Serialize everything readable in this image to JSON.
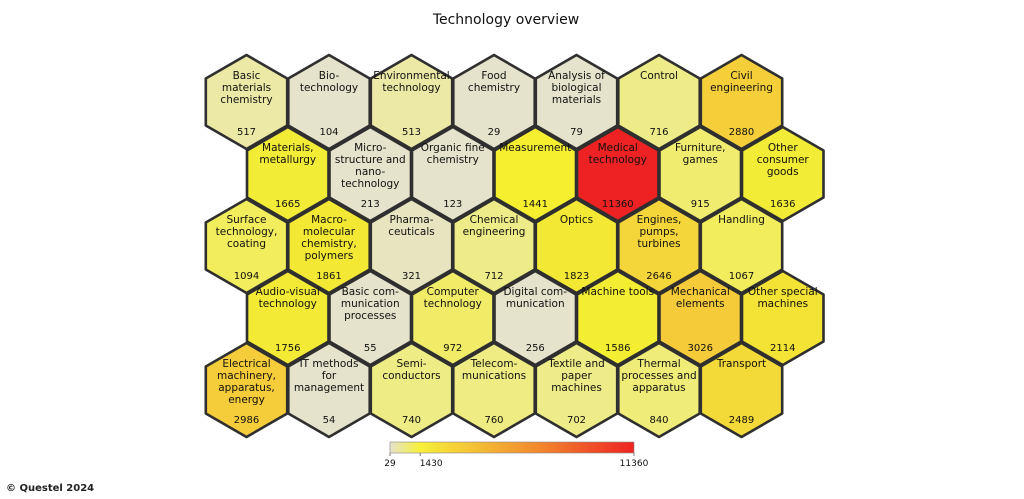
{
  "copyright": "© Questel 2024",
  "chart_data": {
    "type": "heatmap",
    "title": "Technology overview",
    "colorscale": {
      "min": 29,
      "mid": 1430,
      "max": 11360,
      "ticks": [
        "29",
        "1430",
        "11360"
      ],
      "colors": [
        "#e6e3cc",
        "#f7f03a",
        "#f28a2e",
        "#ee2222"
      ]
    },
    "cells": [
      {
        "row": 0,
        "col": 0,
        "label": [
          "Basic",
          "materials",
          "chemistry"
        ],
        "value": 517,
        "color": "#ece9a6"
      },
      {
        "row": 0,
        "col": 1,
        "label": [
          "Bio-",
          "technology"
        ],
        "value": 104,
        "color": "#e6e3cc"
      },
      {
        "row": 0,
        "col": 2,
        "label": [
          "Environmental",
          "technology"
        ],
        "value": 513,
        "color": "#ece9a6"
      },
      {
        "row": 0,
        "col": 3,
        "label": [
          "Food",
          "chemistry"
        ],
        "value": 29,
        "color": "#e6e3cc"
      },
      {
        "row": 0,
        "col": 4,
        "label": [
          "Analysis of",
          "biological",
          "materials"
        ],
        "value": 79,
        "color": "#e6e3cc"
      },
      {
        "row": 0,
        "col": 5,
        "label": [
          "Control"
        ],
        "value": 716,
        "color": "#eeec88"
      },
      {
        "row": 0,
        "col": 6,
        "label": [
          "Civil",
          "engineering"
        ],
        "value": 2880,
        "color": "#f5cf3a"
      },
      {
        "row": 1,
        "col": 0,
        "label": [
          "Materials,",
          "metallurgy"
        ],
        "value": 1665,
        "color": "#f3ec36"
      },
      {
        "row": 1,
        "col": 1,
        "label": [
          "Micro-",
          "structure and",
          "nano-",
          "technology"
        ],
        "value": 213,
        "color": "#e6e3cc"
      },
      {
        "row": 1,
        "col": 2,
        "label": [
          "Organic fine",
          "chemistry"
        ],
        "value": 123,
        "color": "#e6e3cc"
      },
      {
        "row": 1,
        "col": 3,
        "label": [
          "Measurement"
        ],
        "value": 1441,
        "color": "#f5ef30"
      },
      {
        "row": 1,
        "col": 4,
        "label": [
          "Medical",
          "technology"
        ],
        "value": 11360,
        "color": "#ee2222"
      },
      {
        "row": 1,
        "col": 5,
        "label": [
          "Furniture,",
          "games"
        ],
        "value": 915,
        "color": "#f0ec70"
      },
      {
        "row": 1,
        "col": 6,
        "label": [
          "Other",
          "consumer",
          "goods"
        ],
        "value": 1636,
        "color": "#f3ec36"
      },
      {
        "row": 2,
        "col": 0,
        "label": [
          "Surface",
          "technology,",
          "coating"
        ],
        "value": 1094,
        "color": "#f1ed5c"
      },
      {
        "row": 2,
        "col": 1,
        "label": [
          "Macro-",
          "molecular",
          "chemistry,",
          "polymers"
        ],
        "value": 1861,
        "color": "#f3e934"
      },
      {
        "row": 2,
        "col": 2,
        "label": [
          "Pharma-",
          "ceuticals"
        ],
        "value": 321,
        "color": "#e7e4c0"
      },
      {
        "row": 2,
        "col": 3,
        "label": [
          "Chemical",
          "engineering"
        ],
        "value": 712,
        "color": "#eeec88"
      },
      {
        "row": 2,
        "col": 4,
        "label": [
          "Optics"
        ],
        "value": 1823,
        "color": "#f3e934"
      },
      {
        "row": 2,
        "col": 5,
        "label": [
          "Engines,",
          "pumps,",
          "turbines"
        ],
        "value": 2646,
        "color": "#f4d63a"
      },
      {
        "row": 2,
        "col": 6,
        "label": [
          "Handling"
        ],
        "value": 1067,
        "color": "#f1ed5c"
      },
      {
        "row": 3,
        "col": 0,
        "label": [
          "Audio-visual",
          "technology"
        ],
        "value": 1756,
        "color": "#f3ea35"
      },
      {
        "row": 3,
        "col": 1,
        "label": [
          "Basic com-",
          "munication",
          "processes"
        ],
        "value": 55,
        "color": "#e6e3cc"
      },
      {
        "row": 3,
        "col": 2,
        "label": [
          "Computer",
          "technology"
        ],
        "value": 972,
        "color": "#f0ec68"
      },
      {
        "row": 3,
        "col": 3,
        "label": [
          "Digital com-",
          "munication"
        ],
        "value": 256,
        "color": "#e6e3cc"
      },
      {
        "row": 3,
        "col": 4,
        "label": [
          "Machine tools"
        ],
        "value": 1586,
        "color": "#f4ee32"
      },
      {
        "row": 3,
        "col": 5,
        "label": [
          "Mechanical",
          "elements"
        ],
        "value": 3026,
        "color": "#f5cb3a"
      },
      {
        "row": 3,
        "col": 6,
        "label": [
          "Other special",
          "machines"
        ],
        "value": 2114,
        "color": "#f3e334"
      },
      {
        "row": 4,
        "col": 0,
        "label": [
          "Electrical",
          "machinery,",
          "apparatus,",
          "energy"
        ],
        "value": 2986,
        "color": "#f5cc3a"
      },
      {
        "row": 4,
        "col": 1,
        "label": [
          "IT methods",
          "for",
          "management"
        ],
        "value": 54,
        "color": "#e6e3cc"
      },
      {
        "row": 4,
        "col": 2,
        "label": [
          "Semi-",
          "conductors"
        ],
        "value": 740,
        "color": "#eeec85"
      },
      {
        "row": 4,
        "col": 3,
        "label": [
          "Telecom-",
          "munications"
        ],
        "value": 760,
        "color": "#eeec82"
      },
      {
        "row": 4,
        "col": 4,
        "label": [
          "Textile and",
          "paper",
          "machines"
        ],
        "value": 702,
        "color": "#eeec88"
      },
      {
        "row": 4,
        "col": 5,
        "label": [
          "Thermal",
          "processes and",
          "apparatus"
        ],
        "value": 840,
        "color": "#efec78"
      },
      {
        "row": 4,
        "col": 6,
        "label": [
          "Transport"
        ],
        "value": 2489,
        "color": "#f4da38"
      }
    ]
  }
}
